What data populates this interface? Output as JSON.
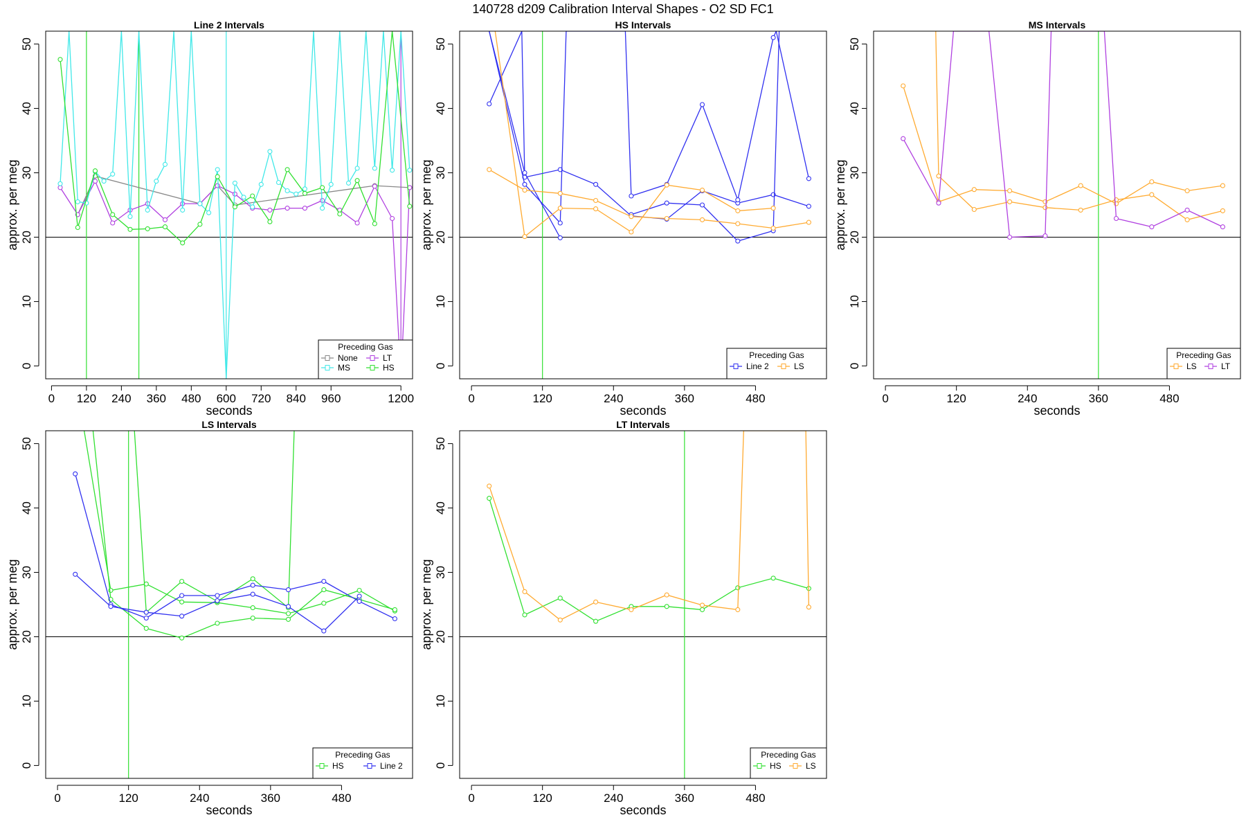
{
  "figure_title": "140728   d209   Calibration Interval Shapes - O2 SD FC1",
  "colors": {
    "None": "#888888",
    "LT": "#b040e0",
    "MS": "#40e8e8",
    "HS": "#30e030",
    "Line 2": "#3030f0",
    "LS": "#ffaa30",
    "reference_line": "#000000",
    "vertical_marker": "#008000"
  },
  "chart_data": [
    {
      "type": "line",
      "title": "Line 2 Intervals",
      "xlabel": "seconds",
      "ylabel": "approx. per meg",
      "xlim": [
        -20,
        1240
      ],
      "ylim": [
        -2,
        52
      ],
      "xticks": [
        0,
        120,
        240,
        360,
        480,
        600,
        720,
        840,
        960,
        1200
      ],
      "yticks": [
        0,
        10,
        20,
        30,
        40,
        50
      ],
      "hline": 20,
      "vlines": [
        {
          "x": 120,
          "color_key": "HS"
        },
        {
          "x": 300,
          "color_key": "HS"
        },
        {
          "x": 600,
          "color_key": "MS"
        },
        {
          "x": 1200,
          "color_key": "LT"
        }
      ],
      "legend": {
        "title": "Preceding Gas",
        "entries": [
          "None",
          "LT",
          "MS",
          "HS"
        ],
        "position": "bottom-right",
        "columns": 2
      },
      "series": [
        {
          "name": "None",
          "x": [
            90,
            150,
            510,
            570,
            630,
            1110,
            1230
          ],
          "y": [
            23.5,
            29.5,
            25.2,
            28,
            25,
            28,
            27.7
          ]
        },
        {
          "name": "LT",
          "x": [
            30,
            90,
            150,
            210,
            270,
            330,
            390,
            450,
            510,
            570,
            630,
            690,
            750,
            810,
            870,
            930,
            990,
            1050,
            1110,
            1170,
            1200,
            1230
          ],
          "y": [
            27.7,
            23.5,
            28.7,
            22.2,
            24.2,
            25.2,
            22.7,
            25.2,
            25.2,
            28,
            26.7,
            24.5,
            24.2,
            24.5,
            24.5,
            25.7,
            24.2,
            22.2,
            27.9,
            22.9,
            -2,
            27.7
          ]
        },
        {
          "name": "MS",
          "x": [
            30,
            60,
            90,
            120,
            150,
            180,
            210,
            240,
            270,
            300,
            330,
            360,
            390,
            420,
            450,
            480,
            510,
            540,
            570,
            600,
            630,
            660,
            690,
            720,
            750,
            780,
            810,
            840,
            870,
            900,
            930,
            960,
            990,
            1020,
            1050,
            1080,
            1110,
            1140,
            1170,
            1200,
            1230
          ],
          "y": [
            28.3,
            52,
            25.5,
            25.3,
            30.2,
            28.7,
            29.8,
            52,
            23.2,
            52,
            24.2,
            28.7,
            31.3,
            52,
            24.2,
            52,
            25.2,
            23.8,
            30.5,
            -2,
            28.4,
            26.2,
            24.7,
            28.2,
            33.3,
            28.5,
            27.2,
            26.7,
            27.5,
            52,
            24.5,
            28.2,
            52,
            28.4,
            30.7,
            52,
            30.7,
            52,
            30.4,
            52,
            30.4
          ]
        },
        {
          "name": "HS",
          "x": [
            30,
            90,
            150,
            210,
            270,
            330,
            390,
            450,
            510,
            570,
            630,
            690,
            750,
            810,
            870,
            930,
            990,
            1050,
            1110,
            1170,
            1230
          ],
          "y": [
            47.6,
            21.5,
            30.3,
            23.5,
            21.2,
            21.3,
            21.6,
            19.1,
            22,
            29.4,
            24.7,
            26.4,
            22.4,
            30.5,
            26.8,
            27.7,
            23.6,
            28.8,
            22.1,
            52,
            24.8
          ]
        }
      ]
    },
    {
      "type": "line",
      "title": "HS Intervals",
      "xlabel": "seconds",
      "ylabel": "approx. per meg",
      "xlim": [
        -20,
        600
      ],
      "ylim": [
        -2,
        52
      ],
      "xticks": [
        0,
        120,
        240,
        360,
        480
      ],
      "yticks": [
        0,
        10,
        20,
        30,
        40,
        50
      ],
      "hline": 20,
      "vlines": [
        {
          "x": 120,
          "color_key": "HS"
        }
      ],
      "legend": {
        "title": "Preceding Gas",
        "entries": [
          "Line 2",
          "LS"
        ],
        "position": "bottom-right",
        "columns": 2
      },
      "series": [
        {
          "name": "Line 2",
          "x": [
            30,
            85,
            90,
            150,
            210,
            270,
            330,
            390,
            450,
            510,
            570
          ],
          "y": [
            40.7,
            52,
            29.3,
            30.5,
            28.2,
            23.3,
            22.8,
            27.2,
            25.3,
            26.6,
            24.8
          ]
        },
        {
          "name": "Line 2",
          "x": [
            30,
            90,
            150,
            160,
            260,
            270,
            330,
            390,
            450,
            510,
            515,
            570
          ],
          "y": [
            52,
            28.2,
            22.2,
            52,
            52,
            26.4,
            28.2,
            40.6,
            25.8,
            51,
            52,
            29.1
          ]
        },
        {
          "name": "Line 2",
          "x": [
            30,
            90,
            150
          ],
          "y": [
            52,
            30,
            19.9
          ]
        },
        {
          "name": "Line 2",
          "x": [
            270,
            330,
            390,
            450,
            510,
            520
          ],
          "y": [
            23.5,
            25.3,
            25,
            19.4,
            21,
            52
          ]
        },
        {
          "name": "LS",
          "x": [
            30,
            90,
            150,
            210,
            270,
            330,
            390,
            450,
            510,
            570
          ],
          "y": [
            30.5,
            27.3,
            26.8,
            25.7,
            23.2,
            22.9,
            22.7,
            22.1,
            21.4,
            22.3
          ]
        },
        {
          "name": "LS",
          "x": [
            40,
            90,
            150,
            210,
            270,
            330,
            390,
            450,
            510
          ],
          "y": [
            52,
            20.1,
            24.5,
            24.4,
            20.8,
            28.1,
            27.3,
            24.1,
            24.5
          ]
        }
      ]
    },
    {
      "type": "line",
      "title": "MS Intervals",
      "xlabel": "seconds",
      "ylabel": "approx. per meg",
      "xlim": [
        -20,
        600
      ],
      "ylim": [
        -2,
        52
      ],
      "xticks": [
        0,
        120,
        240,
        360,
        480
      ],
      "yticks": [
        0,
        10,
        20,
        30,
        40,
        50
      ],
      "hline": 20,
      "vlines": [
        {
          "x": 360,
          "color_key": "HS"
        }
      ],
      "legend": {
        "title": "Preceding Gas",
        "entries": [
          "LS",
          "LT"
        ],
        "position": "bottom-right",
        "columns": 2
      },
      "series": [
        {
          "name": "LS",
          "x": [
            30,
            90,
            150,
            210,
            270,
            330,
            390,
            450,
            510,
            570
          ],
          "y": [
            43.5,
            25.5,
            27.4,
            27.2,
            25.5,
            28,
            25.2,
            28.6,
            27.2,
            28
          ]
        },
        {
          "name": "LS",
          "x": [
            85,
            90,
            150,
            210,
            270,
            330,
            390,
            450,
            510,
            570
          ],
          "y": [
            52,
            29.5,
            24.3,
            25.5,
            24.6,
            24.2,
            25.8,
            26.6,
            22.7,
            24.1
          ]
        },
        {
          "name": "LT",
          "x": [
            30,
            90,
            115,
            175,
            210,
            270,
            280,
            370,
            390,
            450,
            510,
            570
          ],
          "y": [
            35.3,
            25.3,
            52,
            52,
            20,
            20.2,
            52,
            52,
            22.9,
            21.6,
            24.2,
            21.6
          ]
        }
      ]
    },
    {
      "type": "line",
      "title": "LS Intervals",
      "xlabel": "seconds",
      "ylabel": "approx. per meg",
      "xlim": [
        -20,
        600
      ],
      "ylim": [
        -2,
        52
      ],
      "xticks": [
        0,
        120,
        240,
        360,
        480
      ],
      "yticks": [
        0,
        10,
        20,
        30,
        40,
        50
      ],
      "hline": 20,
      "vlines": [
        {
          "x": 120,
          "color_key": "HS"
        }
      ],
      "legend": {
        "title": "Preceding Gas",
        "entries": [
          "HS",
          "Line 2"
        ],
        "position": "bottom-right",
        "columns": 2
      },
      "series": [
        {
          "name": "HS",
          "x": [
            45,
            90,
            150,
            210,
            270,
            330,
            390,
            450,
            510,
            570
          ],
          "y": [
            52,
            27.2,
            28.2,
            25.4,
            25.3,
            24.5,
            23.6,
            25.2,
            27.2,
            24
          ]
        },
        {
          "name": "HS",
          "x": [
            60,
            90,
            150,
            210,
            270,
            330,
            390,
            450,
            510,
            570
          ],
          "y": [
            52,
            25.8,
            21.3,
            19.8,
            22.1,
            22.9,
            22.7,
            27.3,
            25.8,
            24.2
          ]
        },
        {
          "name": "HS",
          "x": [
            130,
            150,
            210,
            270,
            330,
            390,
            400
          ],
          "y": [
            52,
            23.8,
            28.6,
            25.5,
            29,
            24.5,
            52
          ]
        },
        {
          "name": "Line 2",
          "x": [
            30,
            90,
            150,
            210,
            270,
            330,
            390,
            450,
            510,
            570
          ],
          "y": [
            45.3,
            25,
            22.9,
            26.4,
            26.4,
            28,
            27.3,
            28.6,
            25.5,
            22.8
          ]
        },
        {
          "name": "Line 2",
          "x": [
            30,
            90,
            150,
            210,
            270,
            330,
            390,
            450,
            510
          ],
          "y": [
            29.7,
            24.7,
            23.8,
            23.2,
            25.6,
            26.6,
            24.7,
            20.9,
            26.3
          ]
        }
      ]
    },
    {
      "type": "line",
      "title": "LT Intervals",
      "xlabel": "seconds",
      "ylabel": "approx. per meg",
      "xlim": [
        -20,
        600
      ],
      "ylim": [
        -2,
        52
      ],
      "xticks": [
        0,
        120,
        240,
        360,
        480
      ],
      "yticks": [
        0,
        10,
        20,
        30,
        40,
        50
      ],
      "hline": 20,
      "vlines": [
        {
          "x": 360,
          "color_key": "HS"
        }
      ],
      "legend": {
        "title": "Preceding Gas",
        "entries": [
          "HS",
          "LS"
        ],
        "position": "bottom-right",
        "columns": 2
      },
      "series": [
        {
          "name": "HS",
          "x": [
            30,
            90,
            150,
            210,
            270,
            330,
            390,
            450,
            510,
            570
          ],
          "y": [
            41.5,
            23.4,
            26,
            22.4,
            24.7,
            24.7,
            24.2,
            27.6,
            29.1,
            27.5
          ]
        },
        {
          "name": "LS",
          "x": [
            30,
            90,
            150,
            210,
            270,
            330,
            390,
            450,
            460,
            565,
            570
          ],
          "y": [
            43.4,
            27,
            22.6,
            25.4,
            24.2,
            26.5,
            24.9,
            24.2,
            52,
            52,
            24.6
          ]
        }
      ]
    }
  ]
}
